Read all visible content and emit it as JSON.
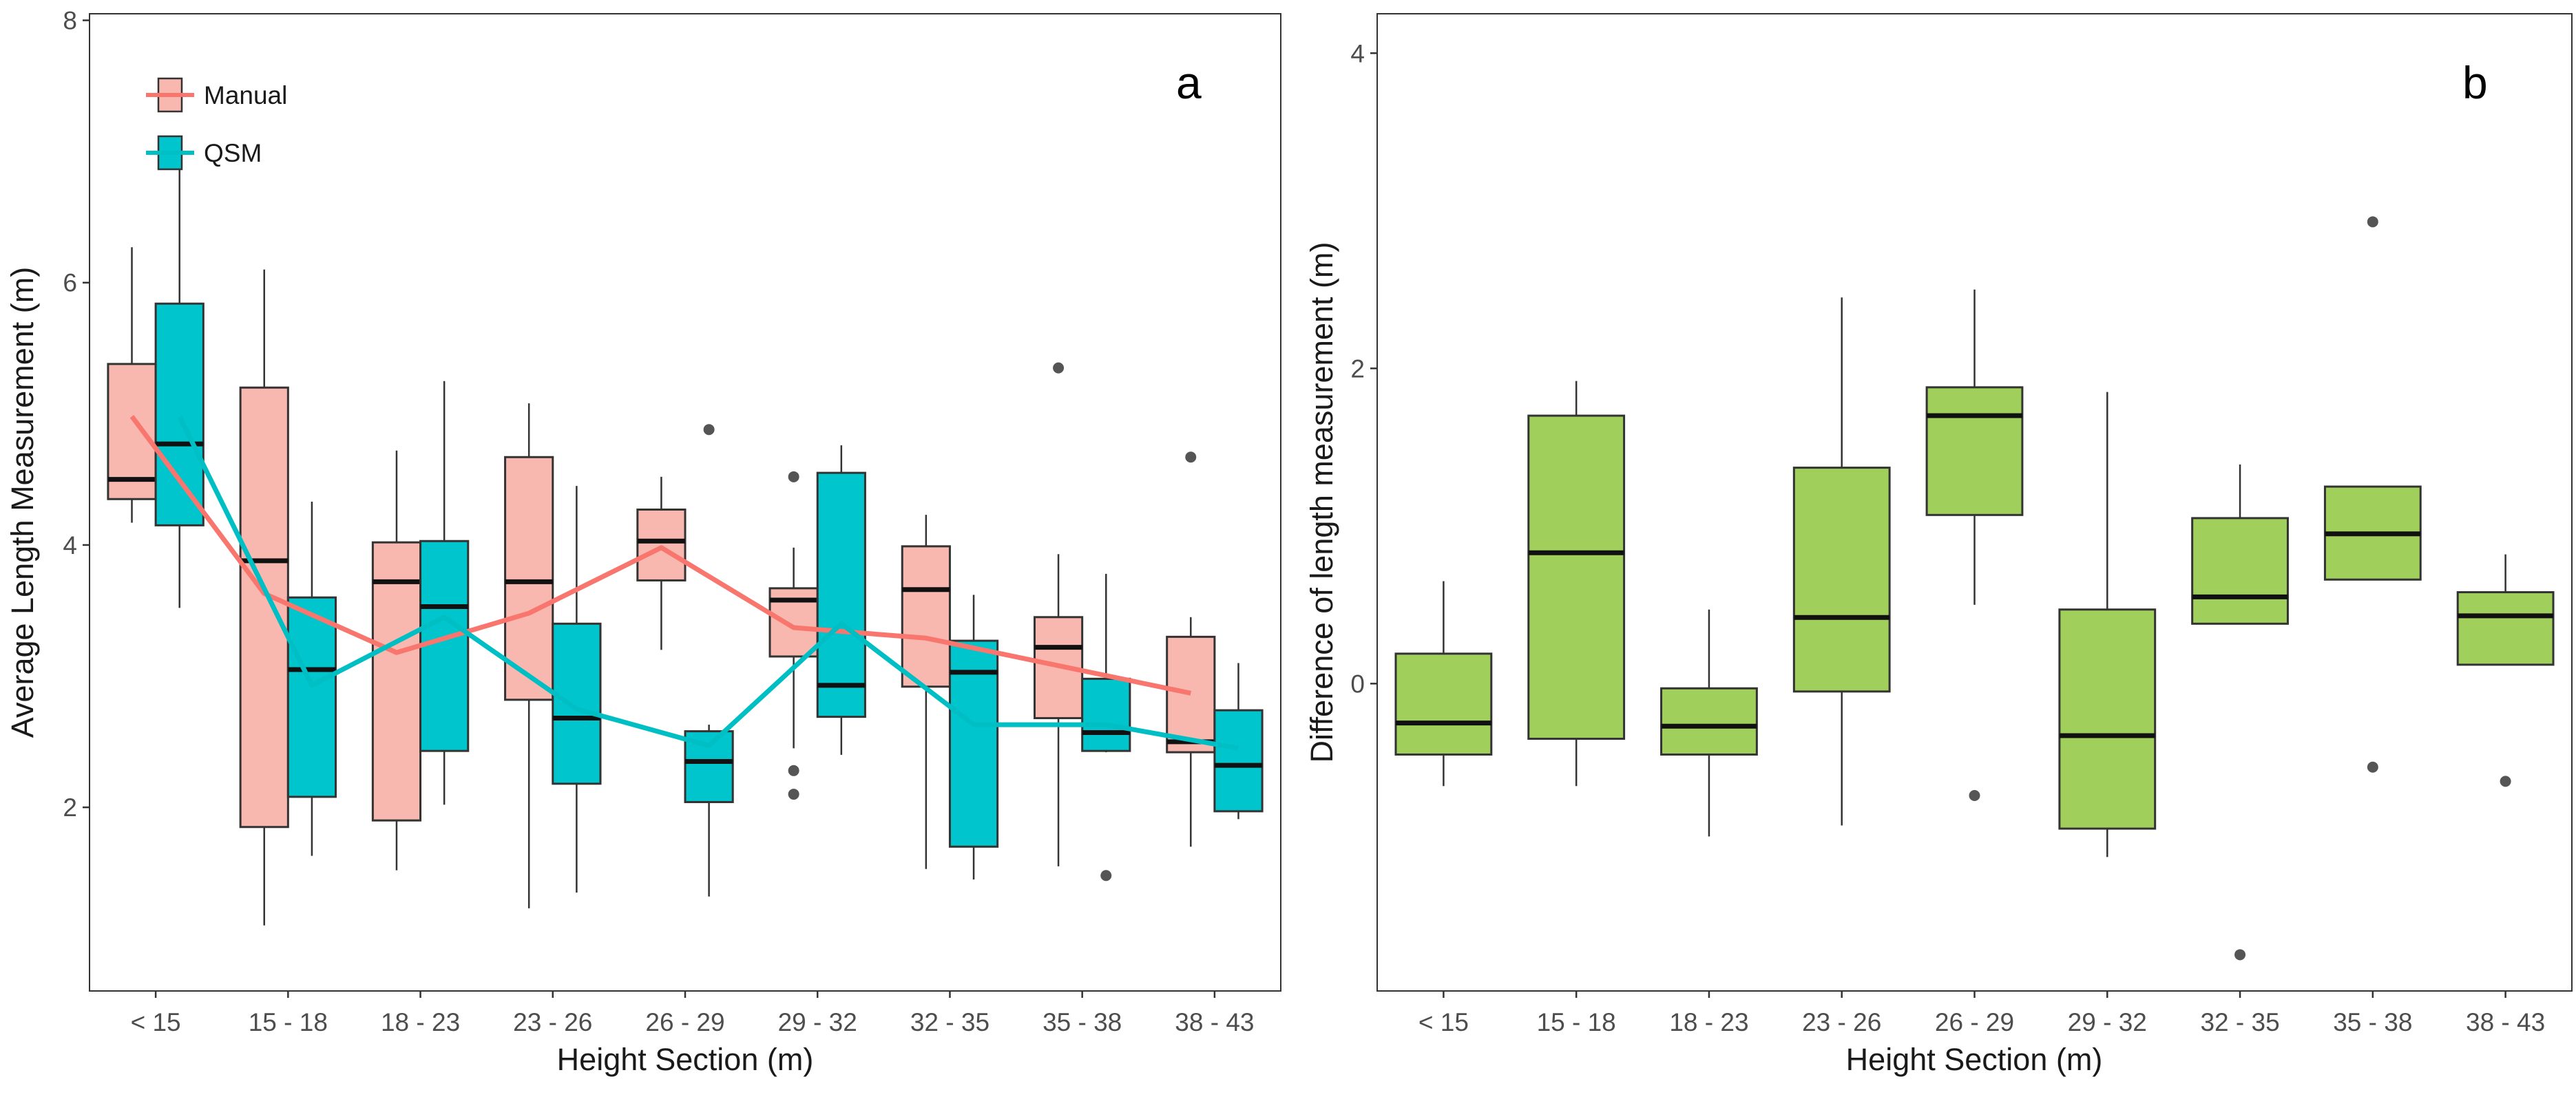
{
  "chart_data": [
    {
      "panel": "a",
      "type": "box",
      "xlabel": "Height Section (m)",
      "ylabel": "Average Length Measurement (m)",
      "categories": [
        "< 15",
        "15 - 18",
        "18 - 23",
        "23 - 26",
        "26 - 29",
        "29 - 32",
        "32 - 35",
        "35 - 38",
        "38 - 43"
      ],
      "ylim": [
        0.6,
        8.05
      ],
      "yticks": [
        2,
        4,
        6,
        8
      ],
      "grid": false,
      "legend": {
        "position": "top-left",
        "entries": [
          "Manual",
          "QSM"
        ]
      },
      "series": [
        {
          "name": "Manual",
          "color": "#F8766D",
          "fill": "#F8B8B0",
          "boxes": [
            {
              "q1": 4.35,
              "median": 4.5,
              "q3": 5.38,
              "whisker_low": 4.17,
              "whisker_high": 6.27,
              "outliers": []
            },
            {
              "q1": 1.85,
              "median": 3.88,
              "q3": 5.2,
              "whisker_low": 1.1,
              "whisker_high": 6.1,
              "outliers": []
            },
            {
              "q1": 1.9,
              "median": 3.72,
              "q3": 4.02,
              "whisker_low": 1.52,
              "whisker_high": 4.72,
              "outliers": []
            },
            {
              "q1": 2.82,
              "median": 3.72,
              "q3": 4.67,
              "whisker_low": 1.23,
              "whisker_high": 5.08,
              "outliers": []
            },
            {
              "q1": 3.73,
              "median": 4.03,
              "q3": 4.27,
              "whisker_low": 3.2,
              "whisker_high": 4.52,
              "outliers": []
            },
            {
              "q1": 3.15,
              "median": 3.58,
              "q3": 3.67,
              "whisker_low": 2.45,
              "whisker_high": 3.98,
              "outliers": [
                4.52,
                2.28,
                2.1
              ]
            },
            {
              "q1": 2.92,
              "median": 3.66,
              "q3": 3.99,
              "whisker_low": 1.53,
              "whisker_high": 4.23,
              "outliers": []
            },
            {
              "q1": 2.68,
              "median": 3.22,
              "q3": 3.45,
              "whisker_low": 1.55,
              "whisker_high": 3.93,
              "outliers": [
                5.35
              ]
            },
            {
              "q1": 2.42,
              "median": 2.5,
              "q3": 3.3,
              "whisker_low": 1.7,
              "whisker_high": 3.45,
              "outliers": [
                4.67
              ]
            }
          ],
          "mean_line": [
            4.98,
            3.63,
            3.18,
            3.48,
            3.98,
            3.37,
            3.29,
            3.08,
            2.87
          ]
        },
        {
          "name": "QSM",
          "color": "#00BFC4",
          "fill": "#00C5CD",
          "boxes": [
            {
              "q1": 4.15,
              "median": 4.77,
              "q3": 5.84,
              "whisker_low": 3.52,
              "whisker_high": 6.88,
              "outliers": []
            },
            {
              "q1": 2.08,
              "median": 3.05,
              "q3": 3.6,
              "whisker_low": 1.63,
              "whisker_high": 4.33,
              "outliers": []
            },
            {
              "q1": 2.43,
              "median": 3.53,
              "q3": 4.03,
              "whisker_low": 2.02,
              "whisker_high": 5.25,
              "outliers": []
            },
            {
              "q1": 2.18,
              "median": 2.68,
              "q3": 3.4,
              "whisker_low": 1.35,
              "whisker_high": 4.45,
              "outliers": []
            },
            {
              "q1": 2.04,
              "median": 2.35,
              "q3": 2.58,
              "whisker_low": 1.32,
              "whisker_high": 2.63,
              "outliers": [
                4.88
              ]
            },
            {
              "q1": 2.69,
              "median": 2.93,
              "q3": 4.55,
              "whisker_low": 2.4,
              "whisker_high": 4.76,
              "outliers": []
            },
            {
              "q1": 1.7,
              "median": 3.03,
              "q3": 3.27,
              "whisker_low": 1.45,
              "whisker_high": 3.62,
              "outliers": []
            },
            {
              "q1": 2.43,
              "median": 2.57,
              "q3": 2.98,
              "whisker_low": 2.42,
              "whisker_high": 3.78,
              "outliers": [
                1.48
              ]
            },
            {
              "q1": 1.97,
              "median": 2.32,
              "q3": 2.74,
              "whisker_low": 1.91,
              "whisker_high": 3.1,
              "outliers": []
            }
          ],
          "mean_line": [
            4.98,
            2.93,
            3.45,
            2.75,
            2.47,
            3.4,
            2.63,
            2.63,
            2.45
          ]
        }
      ]
    },
    {
      "panel": "b",
      "type": "box",
      "xlabel": "Height Section (m)",
      "ylabel": "Difference of length measurement (m)",
      "categories": [
        "< 15",
        "15 - 18",
        "18 - 23",
        "23 - 26",
        "26 - 29",
        "29 - 32",
        "32 - 35",
        "35 - 38",
        "38 - 43"
      ],
      "ylim": [
        -1.95,
        4.25
      ],
      "yticks": [
        0,
        2,
        4
      ],
      "grid": false,
      "series": [
        {
          "name": "Difference",
          "color": "#000000",
          "fill": "#A1CF5C",
          "boxes": [
            {
              "q1": -0.45,
              "median": -0.25,
              "q3": 0.19,
              "whisker_low": -0.65,
              "whisker_high": 0.65,
              "outliers": []
            },
            {
              "q1": -0.35,
              "median": 0.83,
              "q3": 1.7,
              "whisker_low": -0.65,
              "whisker_high": 1.92,
              "outliers": []
            },
            {
              "q1": -0.45,
              "median": -0.27,
              "q3": -0.03,
              "whisker_low": -0.97,
              "whisker_high": 0.47,
              "outliers": []
            },
            {
              "q1": -0.05,
              "median": 0.42,
              "q3": 1.37,
              "whisker_low": -0.9,
              "whisker_high": 2.45,
              "outliers": []
            },
            {
              "q1": 1.07,
              "median": 1.7,
              "q3": 1.88,
              "whisker_low": 0.5,
              "whisker_high": 2.5,
              "outliers": [
                -0.71
              ]
            },
            {
              "q1": -0.92,
              "median": -0.33,
              "q3": 0.47,
              "whisker_low": -1.1,
              "whisker_high": 1.85,
              "outliers": []
            },
            {
              "q1": 0.38,
              "median": 0.55,
              "q3": 1.05,
              "whisker_low": 0.38,
              "whisker_high": 1.39,
              "outliers": [
                -1.72
              ]
            },
            {
              "q1": 0.66,
              "median": 0.95,
              "q3": 1.25,
              "whisker_low": 0.66,
              "whisker_high": 1.25,
              "outliers": [
                2.93,
                -0.53
              ]
            },
            {
              "q1": 0.12,
              "median": 0.43,
              "q3": 0.58,
              "whisker_low": 0.12,
              "whisker_high": 0.82,
              "outliers": [
                -0.62
              ]
            }
          ]
        }
      ]
    }
  ]
}
